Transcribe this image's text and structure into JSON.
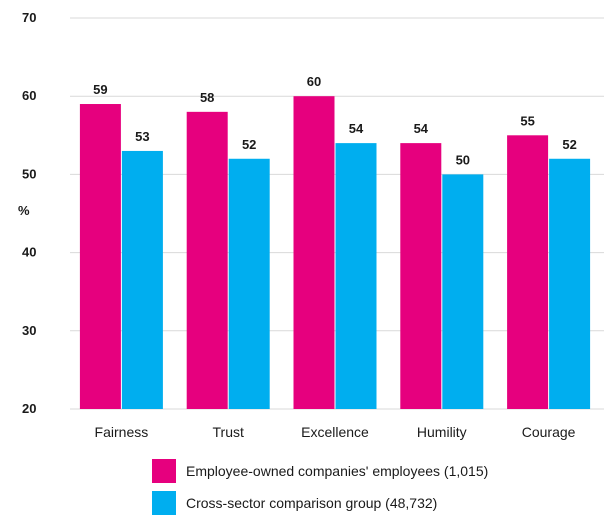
{
  "chart_data": {
    "type": "bar",
    "categories": [
      "Fairness",
      "Trust",
      "Excellence",
      "Humility",
      "Courage"
    ],
    "series": [
      {
        "name": "Employee-owned companies' employees (1,015)",
        "values": [
          59,
          58,
          60,
          54,
          55
        ],
        "color": "#e6007e"
      },
      {
        "name": "Cross-sector comparison group (48,732)",
        "values": [
          53,
          52,
          54,
          50,
          52
        ],
        "color": "#00aeef"
      }
    ],
    "title": "",
    "xlabel": "",
    "ylabel": "%",
    "ylim": [
      20,
      70
    ],
    "yticks": [
      20,
      30,
      40,
      50,
      60,
      70
    ],
    "grid": true,
    "legend_position": "bottom"
  }
}
